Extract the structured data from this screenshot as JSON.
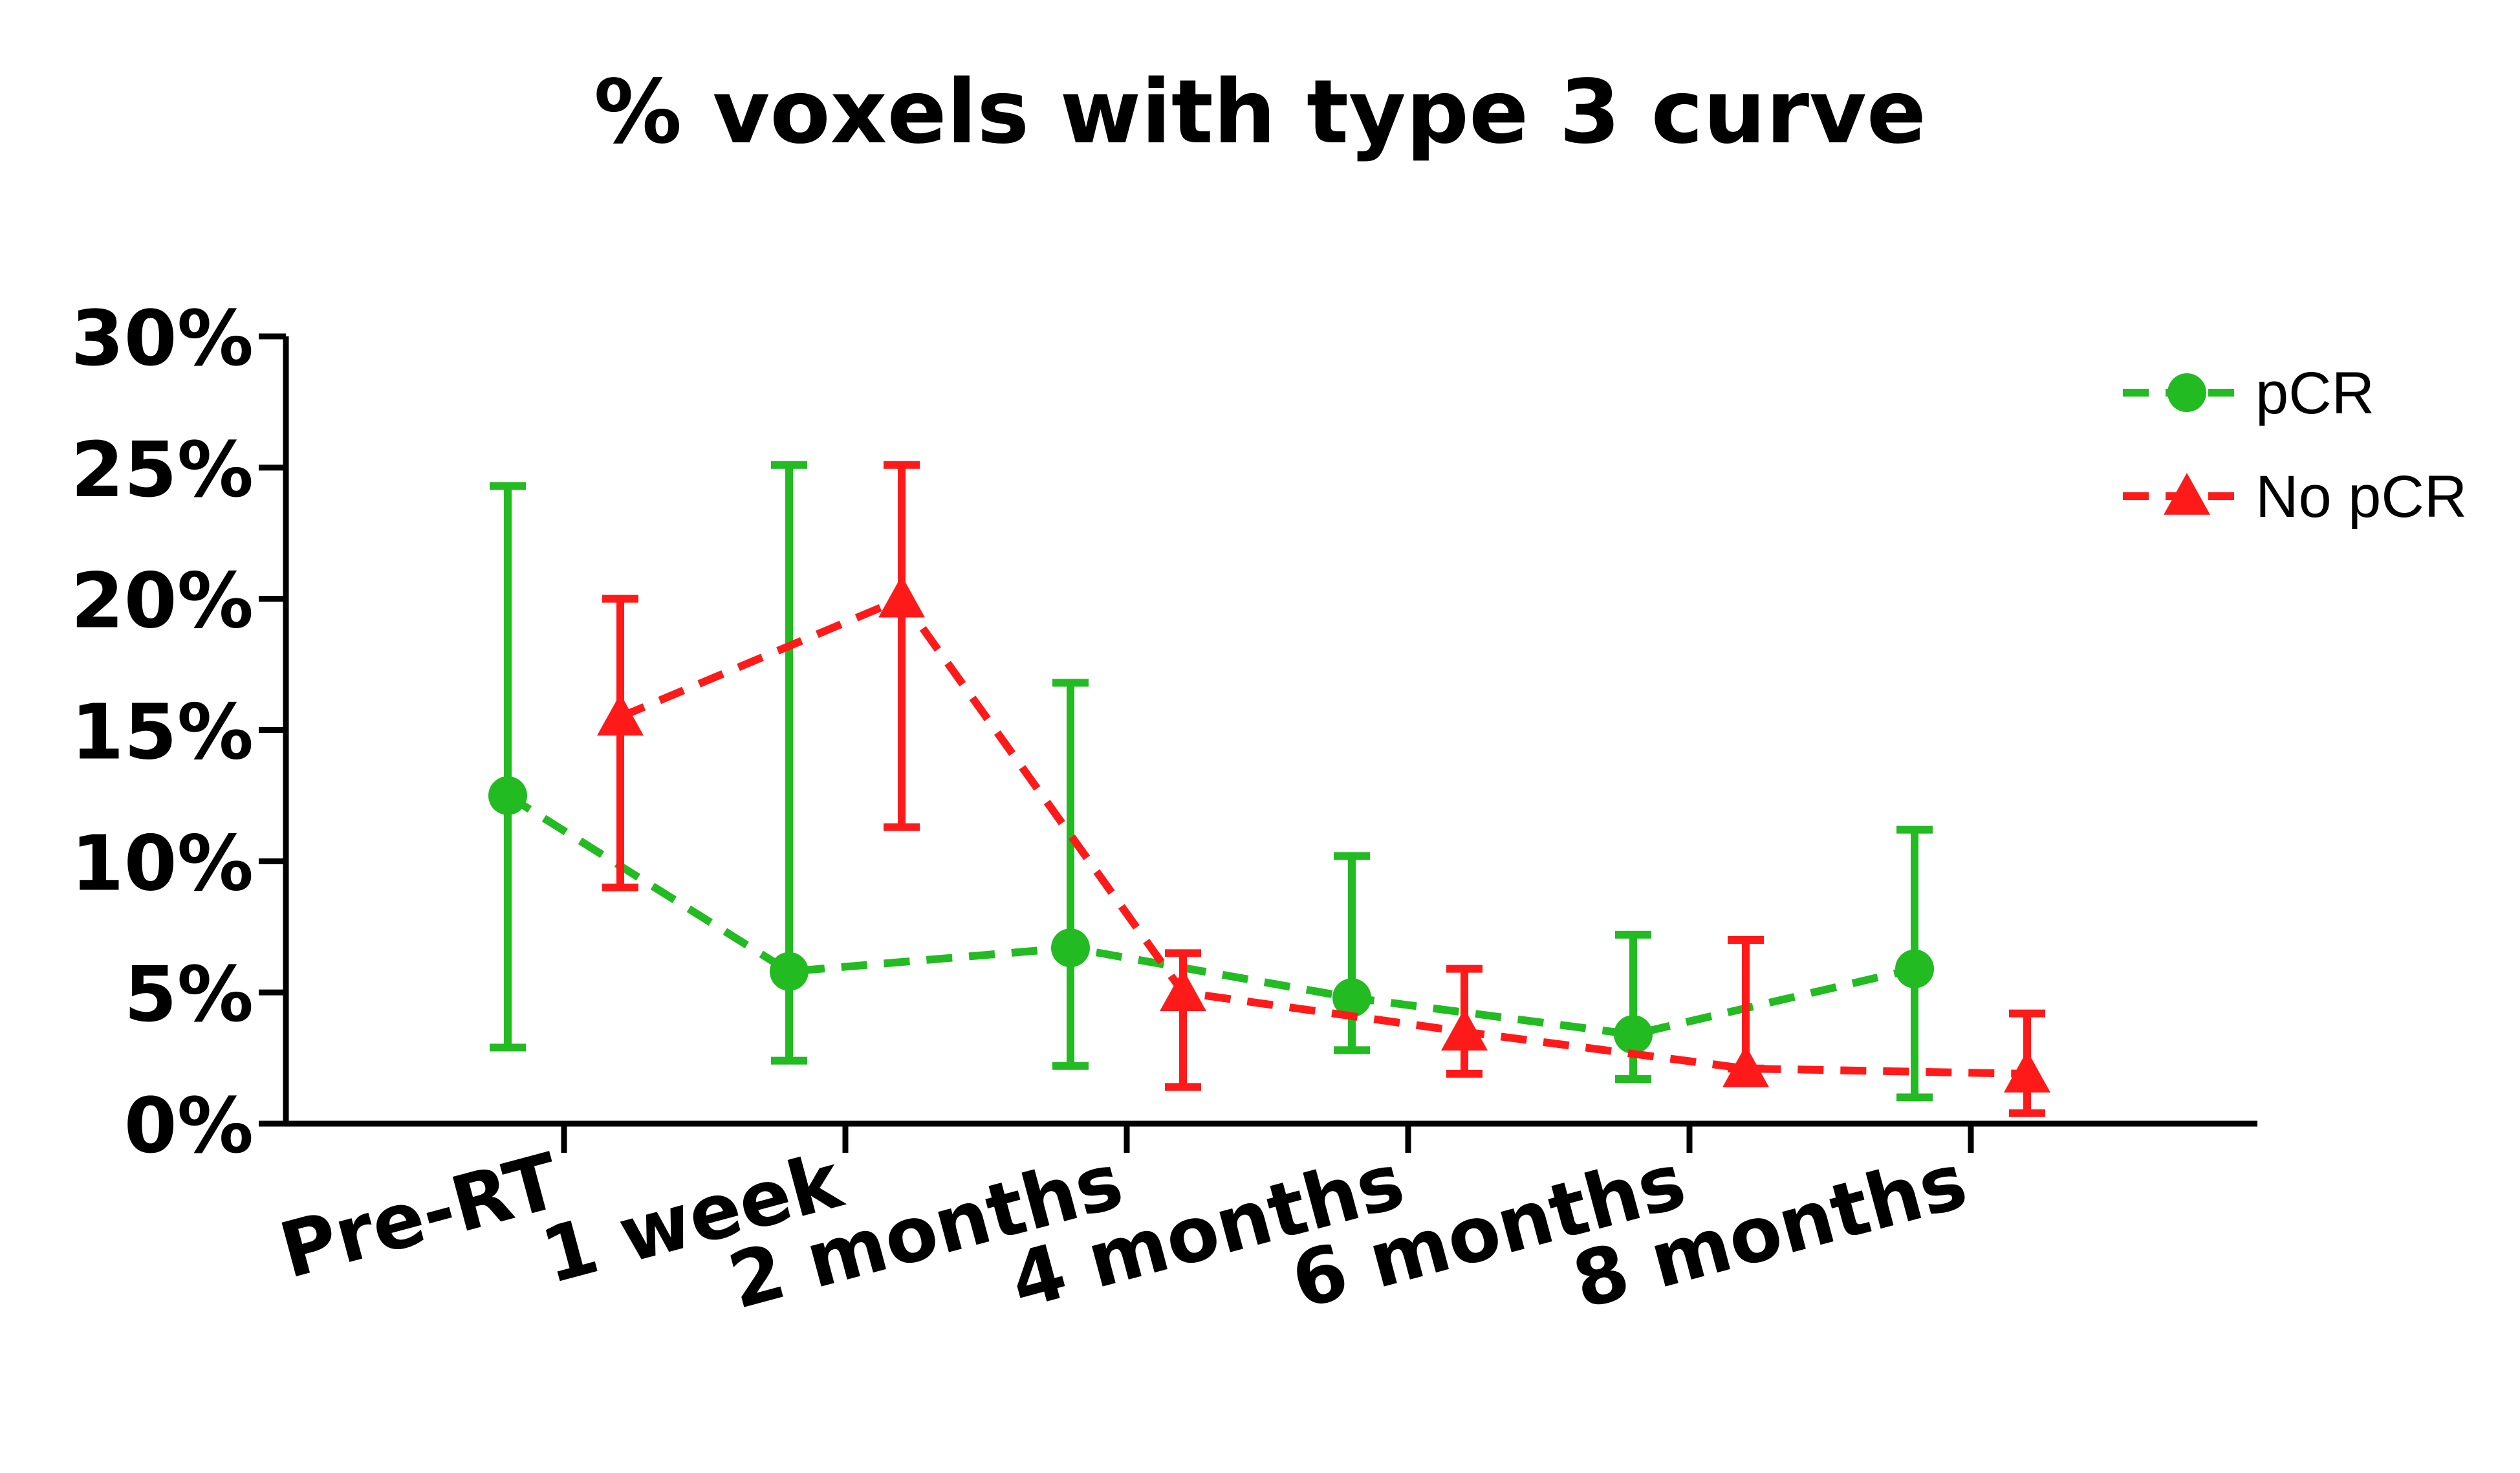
{
  "chart_data": {
    "type": "line",
    "title": "% voxels with type 3 curve",
    "xlabel": "",
    "ylabel": "",
    "categories": [
      "Pre-RT",
      "1 week",
      "2 months",
      "4 months",
      "6 months",
      "8 months"
    ],
    "y_ticks": [
      "0%",
      "5%",
      "10%",
      "15%",
      "20%",
      "25%",
      "30%"
    ],
    "ylim": [
      0,
      30
    ],
    "grid": false,
    "legend_position": "top-right",
    "series": [
      {
        "name": "pCR",
        "color": "#22bb22",
        "marker": "circle",
        "line_style": "dashed",
        "values": [
          12.5,
          5.8,
          6.7,
          4.8,
          3.4,
          5.9
        ],
        "error_low": [
          2.9,
          2.4,
          2.2,
          2.8,
          1.7,
          1.0
        ],
        "error_high": [
          24.3,
          25.1,
          16.8,
          10.2,
          7.2,
          11.2
        ]
      },
      {
        "name": "No pCR",
        "color": "#ff1a1a",
        "marker": "triangle",
        "line_style": "dashed",
        "values": [
          15.5,
          20.0,
          5.0,
          3.5,
          2.1,
          1.9
        ],
        "error_low": [
          9.0,
          11.3,
          1.4,
          1.9,
          2.1,
          0.4
        ],
        "error_high": [
          20.0,
          25.1,
          6.5,
          5.9,
          7.0,
          4.2
        ]
      }
    ]
  }
}
